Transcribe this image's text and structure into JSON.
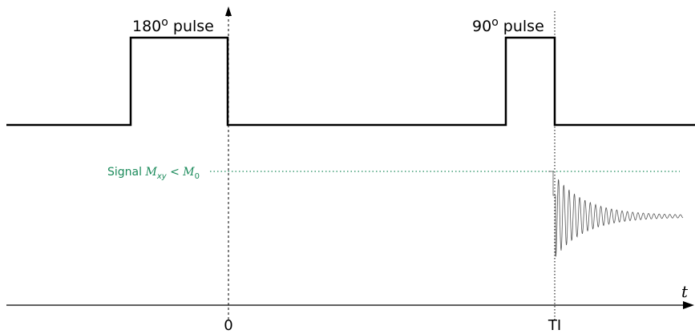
{
  "diagram": {
    "pulse_180_label": {
      "value": "180",
      "suffix": "o",
      "word": " pulse"
    },
    "pulse_90_label": {
      "value": "90",
      "suffix": "o",
      "word": " pulse"
    },
    "axis": {
      "t_label": "t",
      "tick_zero": "0",
      "tick_ti": "TI"
    },
    "signal": {
      "prefix": "Signal ",
      "m": "M",
      "m_sub": "xy",
      "lt": " < ",
      "m0": "M",
      "m0_sub": "0"
    },
    "colors": {
      "line": "#000000",
      "signal": "#1a8a5a",
      "fid": "#555555"
    }
  }
}
